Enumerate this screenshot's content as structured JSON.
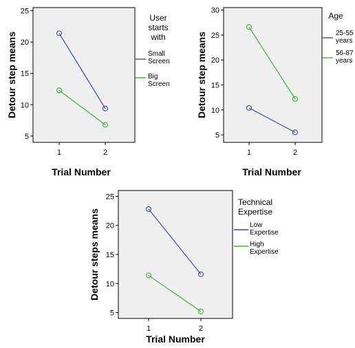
{
  "colors": {
    "blue": "#3b4ba8",
    "green": "#3cb33c"
  },
  "chart_data": [
    {
      "type": "line",
      "xlabel": "Trial Number",
      "ylabel": "Detour step means",
      "categories": [
        "1",
        "2"
      ],
      "yticks": [
        "5",
        "10",
        "15",
        "20",
        "25"
      ],
      "ylim": [
        4.0,
        25.5
      ],
      "legend_title_lines": [
        "User",
        "starts",
        "with"
      ],
      "legend_placement": "right",
      "series": [
        {
          "name_lines": [
            "Small",
            "Screen"
          ],
          "color": "blue",
          "values": [
            21.4,
            9.4
          ]
        },
        {
          "name_lines": [
            "Big",
            "Screen"
          ],
          "color": "green",
          "values": [
            12.3,
            6.8
          ]
        }
      ]
    },
    {
      "type": "line",
      "xlabel": "Trial Number",
      "ylabel": "Detour step means",
      "categories": [
        "1",
        "2"
      ],
      "yticks": [
        "5",
        "10",
        "15",
        "20",
        "25",
        "30"
      ],
      "ylim": [
        3.5,
        30.5
      ],
      "legend_title_lines": [
        "Age"
      ],
      "legend_placement": "right",
      "series": [
        {
          "name_lines": [
            "25-55",
            "years"
          ],
          "color": "blue",
          "values": [
            10.4,
            5.5
          ]
        },
        {
          "name_lines": [
            "56-87",
            "years"
          ],
          "color": "green",
          "values": [
            26.6,
            12.2
          ]
        }
      ]
    },
    {
      "type": "line",
      "xlabel": "Trial Number",
      "ylabel": "Detour steps means",
      "categories": [
        "1",
        "2"
      ],
      "yticks": [
        "5",
        "10",
        "15",
        "20",
        "25"
      ],
      "ylim": [
        4.0,
        26.0
      ],
      "legend_title_lines": [
        "Technical",
        "Expertise"
      ],
      "legend_placement": "right",
      "series": [
        {
          "name_lines": [
            "Low",
            "Expertise"
          ],
          "color": "blue",
          "values": [
            22.8,
            11.6
          ]
        },
        {
          "name_lines": [
            "High",
            "Expertise"
          ],
          "color": "green",
          "values": [
            11.4,
            5.2
          ]
        }
      ]
    }
  ]
}
